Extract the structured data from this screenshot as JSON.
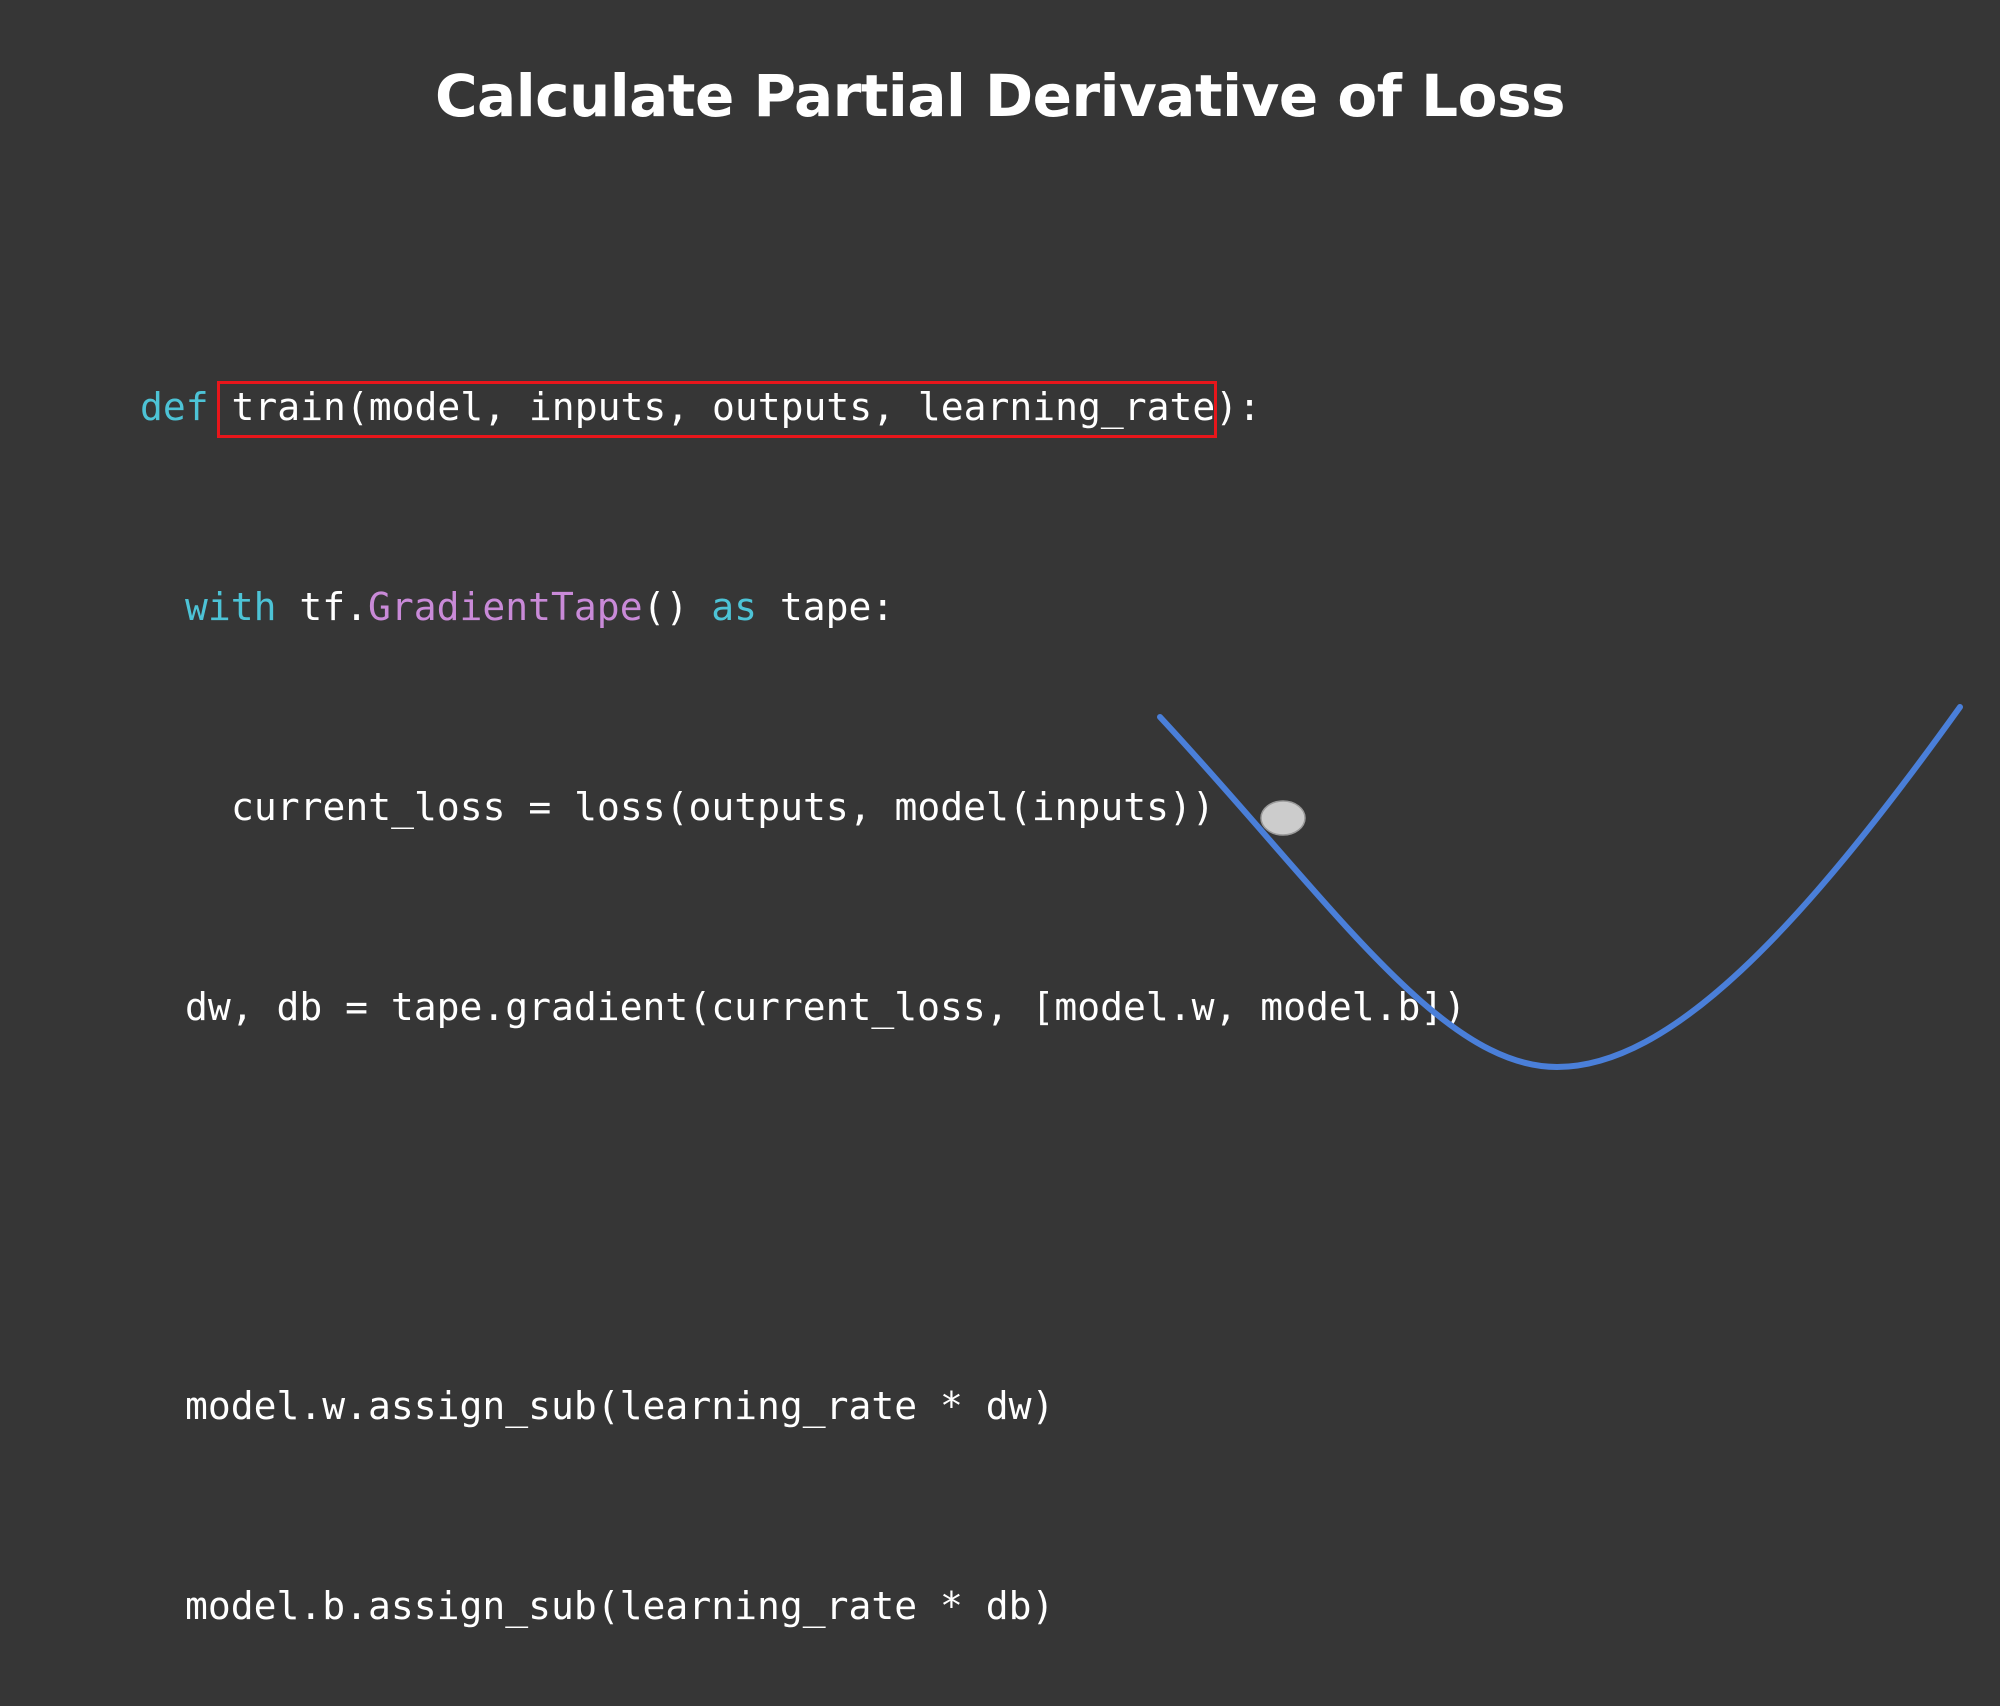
{
  "slide": {
    "title": "Calculate Partial Derivative of Loss"
  },
  "code": {
    "line1": {
      "kw_def": "def",
      "text": " train(model, inputs, outputs, learning_rate):"
    },
    "line2": {
      "kw_with": "with",
      "text_a": " tf.",
      "cls": "GradientTape",
      "text_b": "() ",
      "kw_as": "as",
      "text_c": " tape:"
    },
    "line3": {
      "text": "current_loss = loss(outputs, model(inputs))"
    },
    "line4": {
      "text": "dw, db = tape.gradient(current_loss, [model.w, model.b])"
    },
    "line6": {
      "text": "model.w.assign_sub(learning_rate * dw)"
    },
    "line7": {
      "text": "model.b.assign_sub(learning_rate * db)"
    }
  },
  "colors": {
    "background": "#363636",
    "keyword": "#4dc3d6",
    "class_name": "#c98ad8",
    "highlight_border": "#e8161b",
    "curve": "#4a7fd9",
    "ball": "#cccccc"
  }
}
